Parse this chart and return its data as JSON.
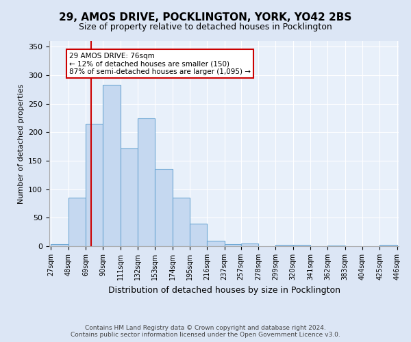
{
  "title_line1": "29, AMOS DRIVE, POCKLINGTON, YORK, YO42 2BS",
  "title_line2": "Size of property relative to detached houses in Pocklington",
  "xlabel": "Distribution of detached houses by size in Pocklington",
  "ylabel": "Number of detached properties",
  "bar_color": "#c5d8f0",
  "bar_edge_color": "#6fa8d4",
  "annotation_text": "29 AMOS DRIVE: 76sqm\n← 12% of detached houses are smaller (150)\n87% of semi-detached houses are larger (1,095) →",
  "vline_x": 76,
  "vline_color": "#cc0000",
  "footer_line1": "Contains HM Land Registry data © Crown copyright and database right 2024.",
  "footer_line2": "Contains public sector information licensed under the Open Government Licence v3.0.",
  "bin_edges": [
    27,
    48,
    69,
    90,
    111,
    132,
    153,
    174,
    195,
    216,
    237,
    257,
    278,
    299,
    320,
    341,
    362,
    383,
    404,
    425,
    446
  ],
  "bar_heights": [
    4,
    85,
    215,
    283,
    172,
    225,
    136,
    85,
    40,
    10,
    4,
    5,
    0,
    2,
    3,
    0,
    1,
    0,
    0,
    2
  ],
  "ylim": [
    0,
    360
  ],
  "yticks": [
    0,
    50,
    100,
    150,
    200,
    250,
    300,
    350
  ],
  "background_color": "#dce6f5",
  "plot_background_color": "#e8f0fa",
  "grid_color": "#ffffff",
  "annotation_box_facecolor": "white",
  "annotation_box_edgecolor": "#cc0000",
  "title1_fontsize": 11,
  "title2_fontsize": 9,
  "ylabel_fontsize": 8,
  "xlabel_fontsize": 9,
  "tick_fontsize": 7,
  "footer_fontsize": 6.5
}
